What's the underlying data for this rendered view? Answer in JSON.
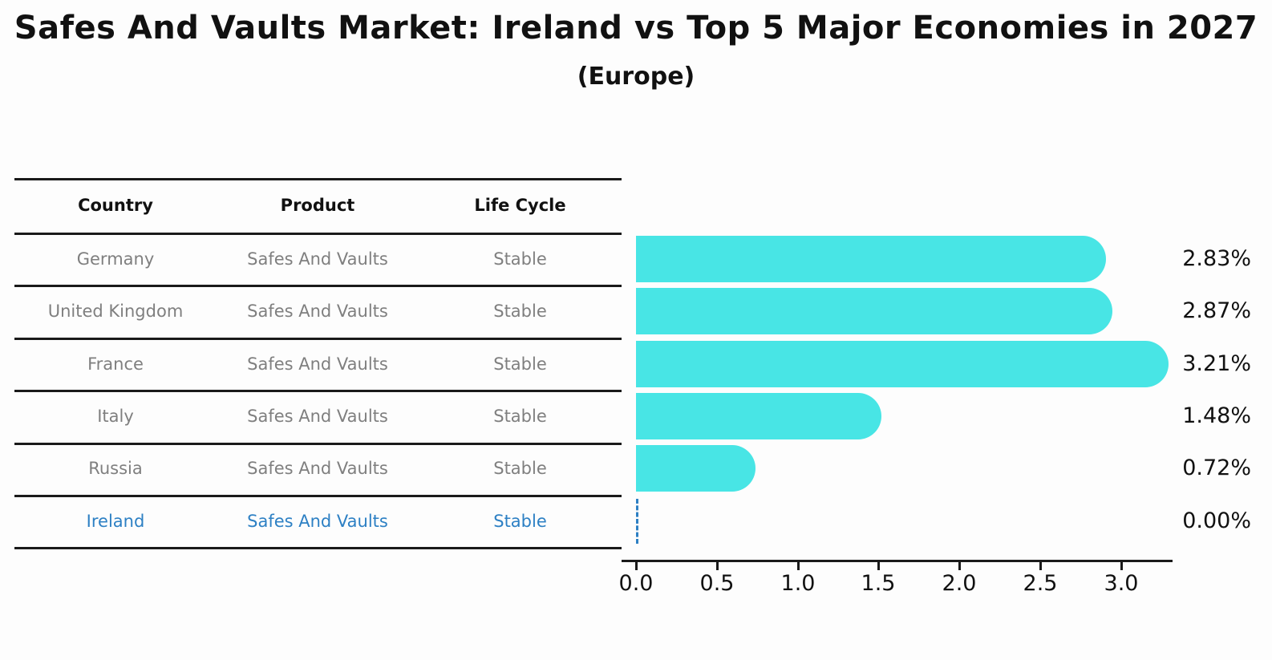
{
  "title": "Safes And Vaults Market: Ireland vs Top 5 Major Economies in 2027",
  "subtitle": "(Europe)",
  "table": {
    "headers": [
      "Country",
      "Product",
      "Life Cycle"
    ],
    "rows": [
      {
        "country": "Germany",
        "product": "Safes And Vaults",
        "life_cycle": "Stable",
        "highlighted": false
      },
      {
        "country": "United Kingdom",
        "product": "Safes And Vaults",
        "life_cycle": "Stable",
        "highlighted": false
      },
      {
        "country": "France",
        "product": "Safes And Vaults",
        "life_cycle": "Stable",
        "highlighted": false
      },
      {
        "country": "Italy",
        "product": "Safes And Vaults",
        "life_cycle": "Stable",
        "highlighted": false
      },
      {
        "country": "Russia",
        "product": "Safes And Vaults",
        "life_cycle": "Stable",
        "highlighted": false
      },
      {
        "country": "Ireland",
        "product": "Safes And Vaults",
        "life_cycle": "Stable",
        "highlighted": true
      }
    ]
  },
  "chart_data": {
    "type": "bar",
    "orientation": "horizontal",
    "title": "Safes And Vaults Market: Ireland vs Top 5 Major Economies in 2027",
    "subtitle": "(Europe)",
    "categories": [
      "Germany",
      "United Kingdom",
      "France",
      "Italy",
      "Russia",
      "Ireland"
    ],
    "values": [
      2.83,
      2.87,
      3.21,
      1.48,
      0.72,
      0.0
    ],
    "value_labels": [
      "2.83%",
      "2.87%",
      "3.21%",
      "1.48%",
      "0.72%",
      "0.00%"
    ],
    "xlim": [
      0.0,
      3.3
    ],
    "xticks": [
      0.0,
      0.5,
      1.0,
      1.5,
      2.0,
      2.5,
      3.0
    ],
    "xtick_labels": [
      "0.0",
      "0.5",
      "1.0",
      "1.5",
      "2.0",
      "2.5",
      "3.0"
    ],
    "grid": false,
    "legend": "none",
    "highlight_index": 5,
    "colors": {
      "bar": "#48e5e5",
      "highlight": "#2d80c4",
      "text": "#111111",
      "muted_text": "#7f7f7f",
      "rule": "#1a1a1a"
    }
  }
}
